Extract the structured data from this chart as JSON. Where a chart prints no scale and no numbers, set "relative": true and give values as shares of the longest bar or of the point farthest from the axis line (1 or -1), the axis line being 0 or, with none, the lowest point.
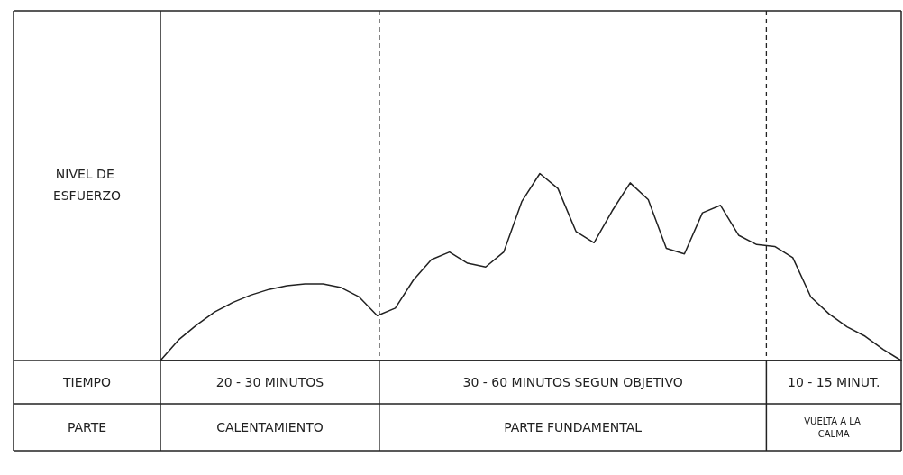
{
  "chart_data": {
    "type": "line",
    "relative": true,
    "ylabel": "NIVEL DE ESFUERZO",
    "categories": [
      null,
      null,
      null,
      null,
      null,
      null,
      null,
      null,
      null,
      null,
      null,
      null,
      null,
      null,
      null,
      null,
      null,
      null,
      null,
      null,
      null,
      null,
      null,
      null,
      null,
      null,
      null,
      null,
      null,
      null,
      null,
      null,
      null,
      null,
      null,
      null,
      null,
      null,
      null,
      null,
      null,
      null
    ],
    "series": [
      {
        "color": "#222222",
        "values": [
          0,
          0.11,
          0.19,
          0.26,
          0.31,
          0.35,
          0.38,
          0.4,
          0.41,
          0.41,
          0.39,
          0.34,
          0.24,
          0.28,
          0.43,
          0.54,
          0.58,
          0.52,
          0.5,
          0.58,
          0.85,
          1,
          0.92,
          0.69,
          0.63,
          0.8,
          0.95,
          0.86,
          0.6,
          0.57,
          0.79,
          0.83,
          0.67,
          0.62,
          0.61,
          0.55,
          0.34,
          0.25,
          0.18,
          0.13,
          0.06,
          0
        ]
      }
    ],
    "annotations": [
      "TIEMPO",
      "20 - 30 MINUTOS",
      "30 - 60 MINUTOS SEGUN OBJETIVO",
      "10 - 15 MINUT.",
      "PARTE",
      "CALENTAMIENTO",
      "PARTE FUNDAMENTAL",
      "VUELTA A LA CALMA"
    ],
    "tick_labels": false,
    "marker": "none",
    "line_style": "solid"
  }
}
